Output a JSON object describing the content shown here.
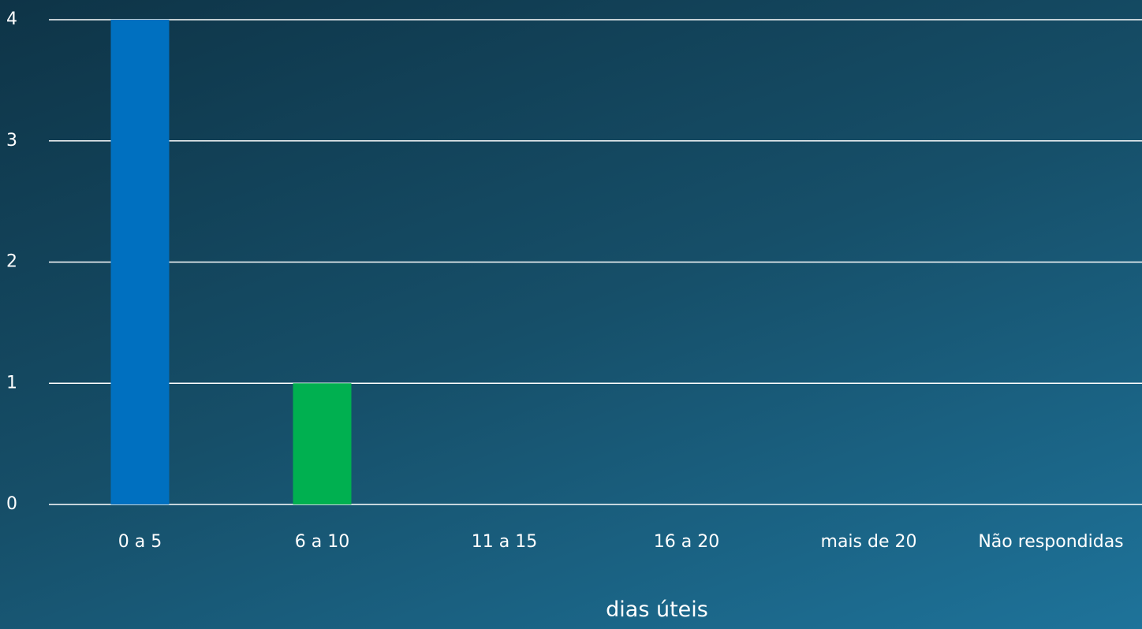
{
  "chart_data": {
    "type": "bar",
    "x_label": "dias úteis",
    "categories": [
      "0 a 5",
      "6 a 10",
      "11 a 15",
      "16 a 20",
      "mais de 20",
      "Não respondidas"
    ],
    "values": [
      4,
      1,
      0,
      0,
      0,
      0
    ],
    "colors": [
      "#0070c0",
      "#00b050"
    ],
    "ylim": [
      0,
      4
    ],
    "yticks": [
      0,
      1,
      2,
      3,
      4
    ],
    "grid": true
  }
}
